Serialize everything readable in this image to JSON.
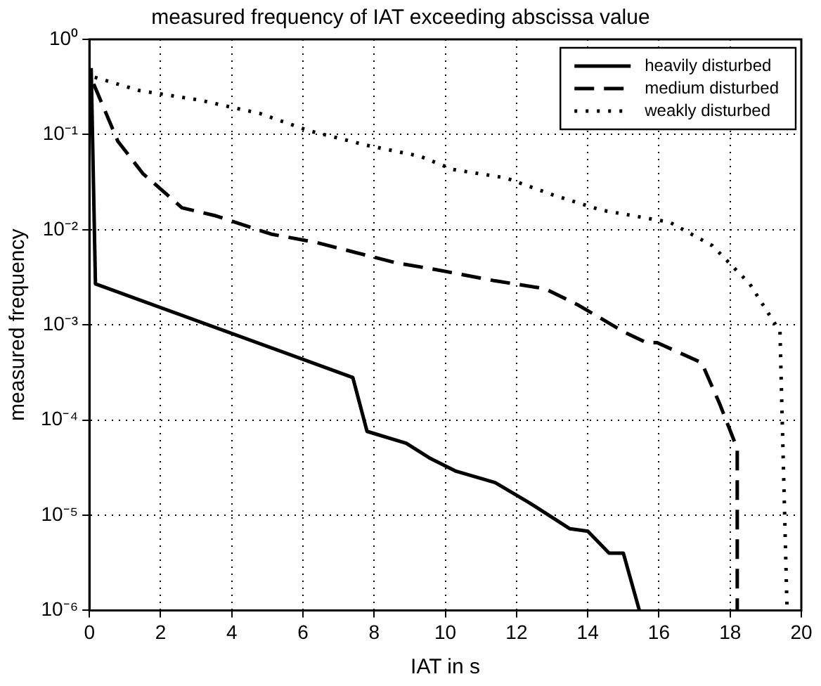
{
  "chart_data": {
    "type": "line",
    "title": "measured frequency of IAT exceeding abscissa value",
    "xlabel": "IAT in s",
    "ylabel": "measured frequency",
    "log": "y",
    "xlim": [
      0,
      20
    ],
    "xticks": [
      0,
      2,
      4,
      6,
      8,
      10,
      12,
      14,
      16,
      18,
      20
    ],
    "ylim": [
      1e-06,
      1
    ],
    "yticks": [
      {
        "value": 1e-06,
        "label": "10⁻⁶"
      },
      {
        "value": 1e-05,
        "label": "10⁻⁵"
      },
      {
        "value": 0.0001,
        "label": "10⁻⁴"
      },
      {
        "value": 0.001,
        "label": "10⁻³"
      },
      {
        "value": 0.01,
        "label": "10⁻²"
      },
      {
        "value": 0.1,
        "label": "10⁻¹"
      },
      {
        "value": 1,
        "label": "10⁰"
      }
    ],
    "grid": true,
    "legend": "top right",
    "marker": "none",
    "series": [
      {
        "name": "heavily disturbed",
        "color": "#000000",
        "line_style": "solid",
        "x": [
          0.05,
          0.17,
          7.4,
          7.8,
          8.9,
          9.55,
          10.3,
          11.4,
          12.36,
          13.5,
          14.0,
          14.6,
          15.0,
          15.45
        ],
        "values": [
          0.5,
          0.0027,
          0.00028,
          7.6e-05,
          5.7e-05,
          4e-05,
          2.9e-05,
          2.2e-05,
          1.35e-05,
          7.2e-06,
          6.8e-06,
          4e-06,
          4e-06,
          1e-06
        ]
      },
      {
        "name": "medium disturbed",
        "color": "#000000",
        "line_style": "dashed",
        "x": [
          0.12,
          0.8,
          1.5,
          2.6,
          3.55,
          5.1,
          6.4,
          8.6,
          9.75,
          11.4,
          12.8,
          13.75,
          15.0,
          15.65,
          15.95,
          17.2,
          17.7,
          18.2,
          18.2
        ],
        "values": [
          0.34,
          0.085,
          0.039,
          0.017,
          0.014,
          0.009,
          0.0073,
          0.0045,
          0.0038,
          0.0029,
          0.0024,
          0.0016,
          0.00085,
          0.00065,
          0.00065,
          0.0004,
          0.00015,
          5e-05,
          1e-06
        ]
      },
      {
        "name": "weakly disturbed",
        "color": "#000000",
        "line_style": "dotted",
        "x": [
          0.15,
          1.4,
          3.1,
          4.8,
          6.15,
          7.8,
          9.3,
          10.2,
          11.7,
          13.05,
          14.4,
          16.3,
          17.5,
          18.55,
          19.4,
          19.6
        ],
        "values": [
          0.4,
          0.29,
          0.23,
          0.166,
          0.11,
          0.077,
          0.059,
          0.043,
          0.035,
          0.023,
          0.016,
          0.012,
          0.0068,
          0.0027,
          0.00085,
          1e-06
        ]
      }
    ]
  }
}
